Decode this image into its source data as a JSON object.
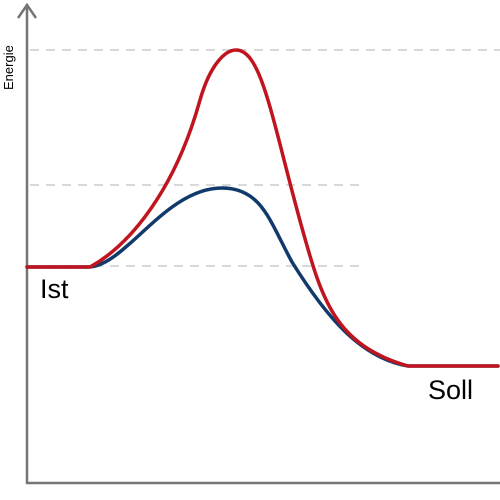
{
  "axis": {
    "y_label": "Energie"
  },
  "states": {
    "start_label": "Ist",
    "end_label": "Soll"
  },
  "colors": {
    "axis": "#757575",
    "guide": "#d9d9d9",
    "high_barrier_curve": "#c0141e",
    "low_barrier_curve": "#103a6b"
  }
}
